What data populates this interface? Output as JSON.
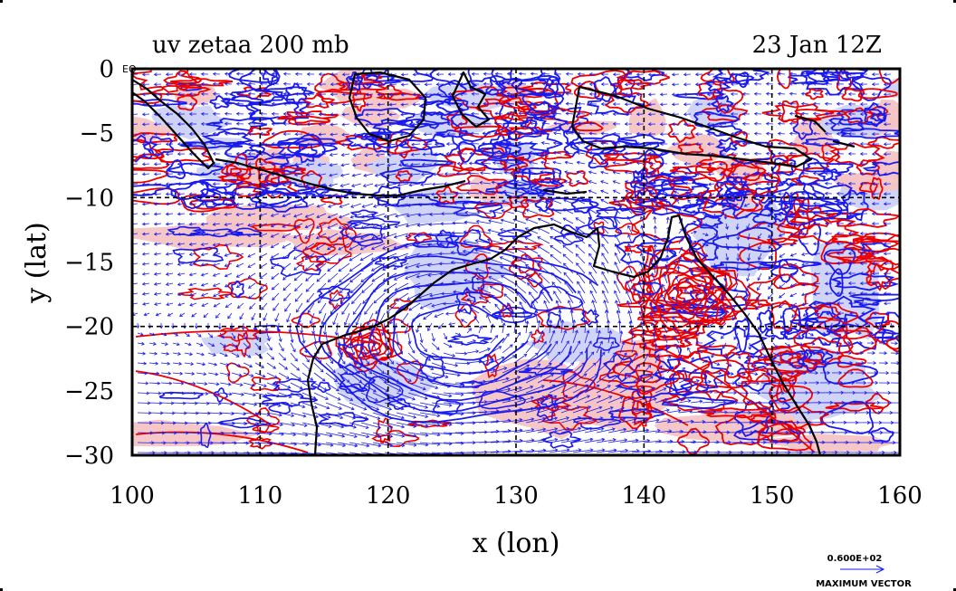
{
  "title_left": "uv zetaa 200 mb",
  "title_right": "23 Jan 12Z",
  "xlabel": "x (lon)",
  "ylabel": "y (lat)",
  "corner_label": "EQ",
  "x_ticks": [
    "100",
    "110",
    "120",
    "130",
    "140",
    "150",
    "160"
  ],
  "y_ticks": [
    "0",
    "−5",
    "−10",
    "−15",
    "−20",
    "−25",
    "−30"
  ],
  "ref_vector_value": "0.600E+02",
  "ref_vector_label": "MAXIMUM VECTOR",
  "colors": {
    "positive_contour": "#ee0000",
    "negative_contour": "#1a1aee",
    "positive_fill": "#f6c4c4",
    "negative_fill": "#cdd2f6",
    "vector": "#1a1aee",
    "coastline": "#000000"
  },
  "map": {
    "lon_range": [
      100,
      160
    ],
    "lat_range": [
      -30,
      0
    ],
    "grid_dashed_lons": [
      110,
      120,
      130,
      140,
      150
    ],
    "grid_dashed_lats": [
      -10,
      -20
    ]
  }
}
